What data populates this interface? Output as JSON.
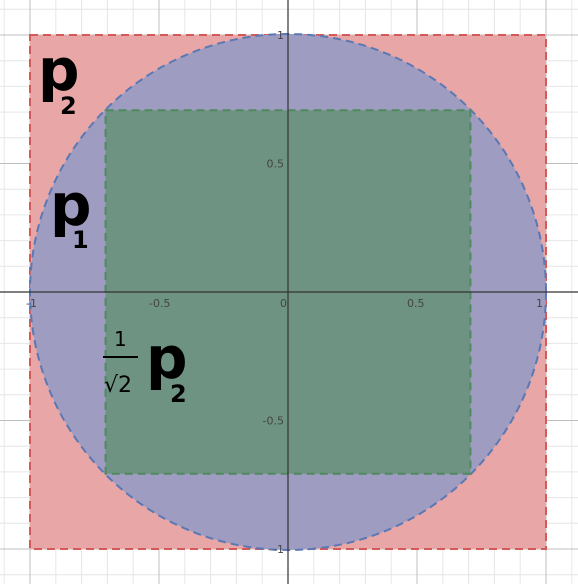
{
  "diagram": {
    "view": {
      "xlim": [
        -1.1,
        1.1
      ],
      "ylim": [
        -1.1,
        1.1
      ]
    },
    "axis_ticks": {
      "x": [
        {
          "value": -1,
          "label": "-1"
        },
        {
          "value": -0.5,
          "label": "-0.5"
        },
        {
          "value": 0,
          "label": "0"
        },
        {
          "value": 0.5,
          "label": "0.5"
        },
        {
          "value": 1,
          "label": "1"
        }
      ],
      "y": [
        {
          "value": 1,
          "label": "1"
        },
        {
          "value": 0.5,
          "label": "0.5"
        },
        {
          "value": -0.5,
          "label": "-0.5"
        },
        {
          "value": -1,
          "label": "-1"
        }
      ]
    },
    "shapes": {
      "outer_square": {
        "half_side": 1,
        "fill": "#e8a6a6",
        "stroke": "#d45a5a"
      },
      "circle": {
        "radius": 1,
        "fill": "#9f9cc1",
        "stroke": "#5a78b4"
      },
      "inner_square": {
        "half_side": 0.7071,
        "fill": "#6f9382",
        "stroke": "#4e8a5e"
      }
    },
    "labels": {
      "outer": {
        "main": "p",
        "sub": "2"
      },
      "circle": {
        "main": "p",
        "sub": "1"
      },
      "inner": {
        "numerator": "1",
        "denominator": "√2",
        "main": "p",
        "sub": "2"
      }
    },
    "colors": {
      "grid_minor": "#e6e6e6",
      "grid_major": "#bfbfbf",
      "axis": "#333333"
    }
  }
}
